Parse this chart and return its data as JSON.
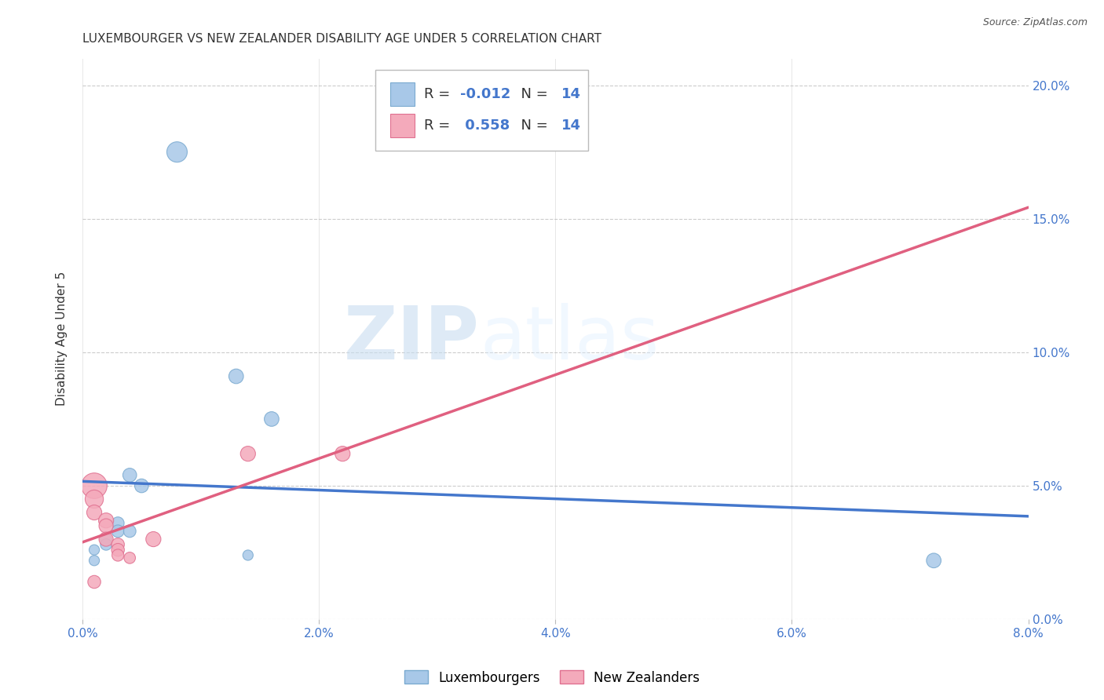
{
  "title": "LUXEMBOURGER VS NEW ZEALANDER DISABILITY AGE UNDER 5 CORRELATION CHART",
  "source": "Source: ZipAtlas.com",
  "ylabel": "Disability Age Under 5",
  "xlim": [
    0.0,
    0.08
  ],
  "ylim": [
    0.0,
    0.21
  ],
  "r_luxembourger": -0.012,
  "n_luxembourger": 14,
  "r_new_zealander": 0.558,
  "n_new_zealander": 14,
  "color_lux": "#a8c8e8",
  "color_nz": "#f4aabb",
  "color_lux_edge": "#7aaad0",
  "color_nz_edge": "#e07090",
  "color_lux_line": "#4477cc",
  "color_nz_line": "#e06080",
  "background_color": "#ffffff",
  "watermark_zip": "ZIP",
  "watermark_atlas": "atlas",
  "lux_points": [
    [
      0.008,
      0.175
    ],
    [
      0.013,
      0.091
    ],
    [
      0.016,
      0.075
    ],
    [
      0.004,
      0.054
    ],
    [
      0.005,
      0.05
    ],
    [
      0.003,
      0.036
    ],
    [
      0.003,
      0.033
    ],
    [
      0.004,
      0.033
    ],
    [
      0.002,
      0.03
    ],
    [
      0.002,
      0.028
    ],
    [
      0.001,
      0.026
    ],
    [
      0.014,
      0.024
    ],
    [
      0.001,
      0.022
    ],
    [
      0.072,
      0.022
    ]
  ],
  "nz_points": [
    [
      0.001,
      0.05
    ],
    [
      0.001,
      0.045
    ],
    [
      0.001,
      0.04
    ],
    [
      0.002,
      0.037
    ],
    [
      0.002,
      0.035
    ],
    [
      0.002,
      0.03
    ],
    [
      0.003,
      0.028
    ],
    [
      0.003,
      0.026
    ],
    [
      0.003,
      0.024
    ],
    [
      0.004,
      0.023
    ],
    [
      0.014,
      0.062
    ],
    [
      0.022,
      0.062
    ],
    [
      0.001,
      0.014
    ],
    [
      0.006,
      0.03
    ]
  ],
  "lux_sizes": [
    350,
    180,
    180,
    160,
    160,
    130,
    130,
    130,
    110,
    110,
    90,
    90,
    90,
    180
  ],
  "nz_sizes": [
    550,
    280,
    190,
    190,
    170,
    170,
    140,
    140,
    120,
    110,
    190,
    190,
    140,
    190
  ],
  "title_fontsize": 11,
  "axis_label_fontsize": 11,
  "tick_fontsize": 11,
  "legend_fontsize": 13
}
